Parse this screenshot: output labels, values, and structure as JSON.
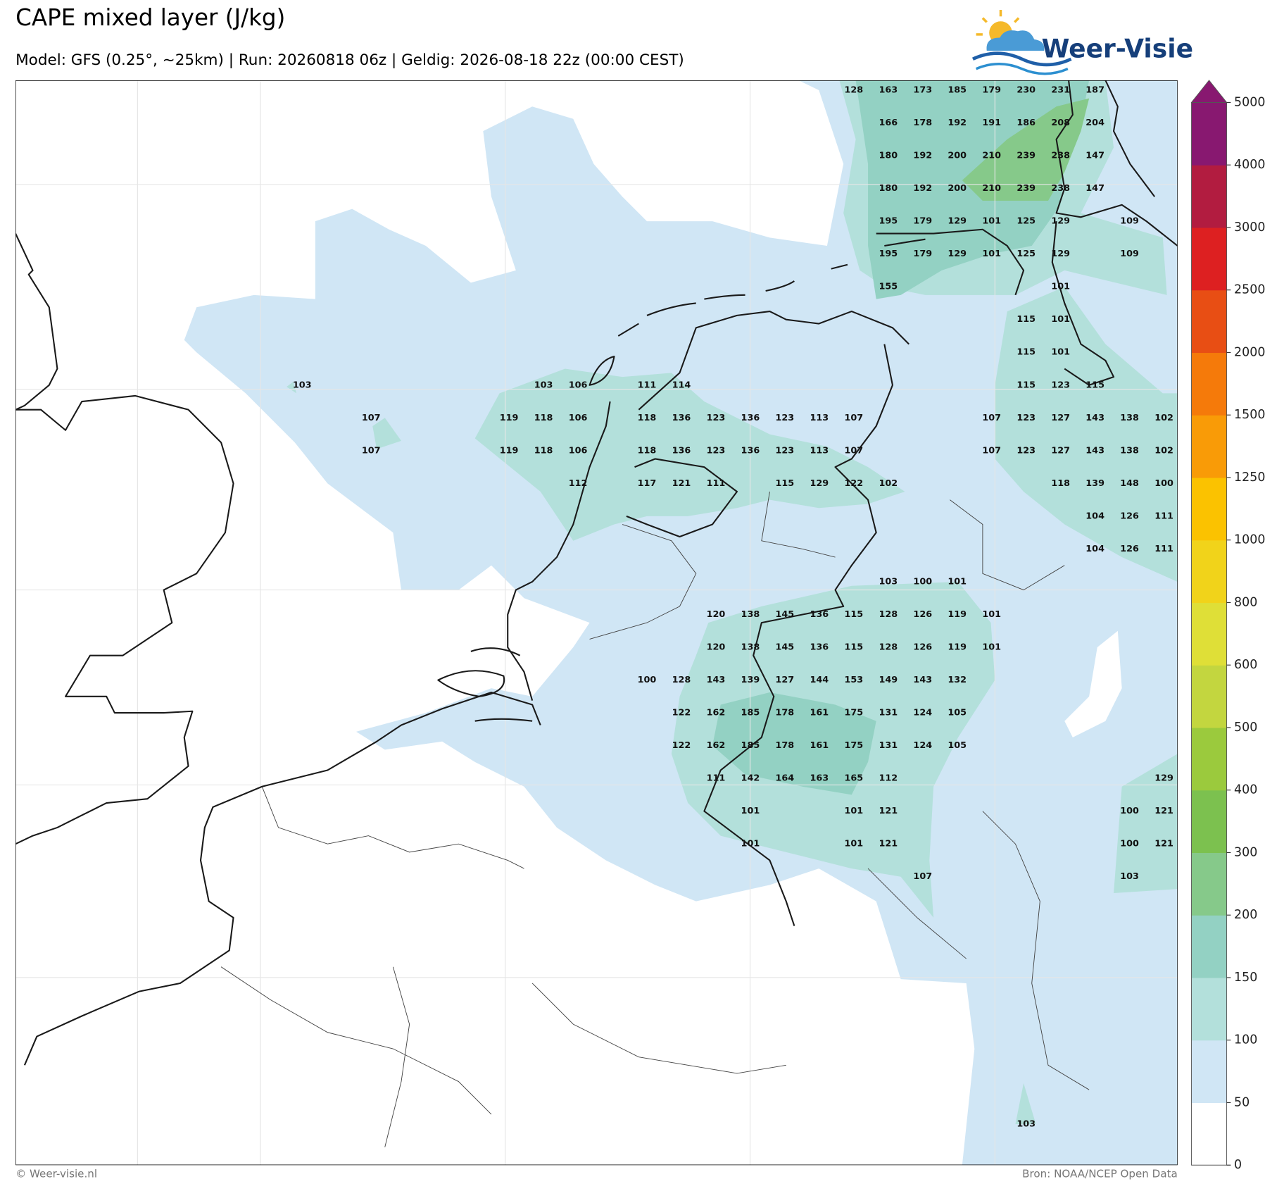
{
  "header": {
    "title": "CAPE mixed layer (J/kg)",
    "subtitle": "Model: GFS (0.25°, ~25km)  |  Run: 20260818 06z  |  Geldig: 2026-08-18 22z (00:00 CEST)",
    "logo": "Weer-Visie"
  },
  "map": {
    "labels": [
      [
        null,
        null,
        null,
        null,
        null,
        null,
        null,
        null,
        null,
        null,
        null,
        null,
        null,
        null,
        null,
        null,
        128,
        163,
        173,
        185,
        179,
        230,
        231,
        187,
        null,
        null
      ],
      [
        null,
        null,
        null,
        null,
        null,
        null,
        null,
        null,
        null,
        null,
        null,
        null,
        null,
        null,
        null,
        null,
        null,
        166,
        178,
        192,
        191,
        186,
        208,
        204,
        null,
        null
      ],
      [
        null,
        null,
        null,
        null,
        null,
        null,
        null,
        null,
        null,
        null,
        null,
        null,
        null,
        null,
        null,
        null,
        null,
        180,
        192,
        200,
        210,
        239,
        238,
        147,
        null,
        null
      ],
      [
        null,
        null,
        null,
        null,
        null,
        null,
        null,
        null,
        null,
        null,
        null,
        null,
        null,
        null,
        null,
        null,
        null,
        180,
        192,
        200,
        210,
        239,
        238,
        147,
        null,
        null
      ],
      [
        null,
        null,
        null,
        null,
        null,
        null,
        null,
        null,
        null,
        null,
        null,
        null,
        null,
        null,
        null,
        null,
        null,
        195,
        179,
        129,
        101,
        125,
        129,
        null,
        109,
        null
      ],
      [
        null,
        null,
        null,
        null,
        null,
        null,
        null,
        null,
        null,
        null,
        null,
        null,
        null,
        null,
        null,
        null,
        null,
        195,
        179,
        129,
        101,
        125,
        129,
        null,
        109,
        null
      ],
      [
        null,
        null,
        null,
        null,
        null,
        null,
        null,
        null,
        null,
        null,
        null,
        null,
        null,
        null,
        null,
        null,
        null,
        155,
        null,
        null,
        null,
        null,
        101,
        null,
        null,
        null
      ],
      [
        null,
        null,
        null,
        null,
        null,
        null,
        null,
        null,
        null,
        null,
        null,
        null,
        null,
        null,
        null,
        null,
        null,
        null,
        null,
        null,
        null,
        115,
        101,
        null,
        null,
        null
      ],
      [
        null,
        null,
        null,
        null,
        null,
        null,
        null,
        null,
        null,
        null,
        null,
        null,
        null,
        null,
        null,
        null,
        null,
        null,
        null,
        null,
        null,
        115,
        101,
        null,
        null,
        null
      ],
      [
        103,
        null,
        null,
        null,
        null,
        null,
        null,
        103,
        106,
        null,
        111,
        114,
        null,
        null,
        null,
        null,
        null,
        null,
        null,
        null,
        null,
        115,
        123,
        115,
        null,
        null
      ],
      [
        null,
        null,
        107,
        null,
        null,
        null,
        119,
        118,
        106,
        null,
        118,
        136,
        123,
        136,
        123,
        113,
        107,
        null,
        null,
        null,
        107,
        123,
        127,
        143,
        138,
        102
      ],
      [
        null,
        null,
        107,
        null,
        null,
        null,
        119,
        118,
        106,
        null,
        118,
        136,
        123,
        136,
        123,
        113,
        107,
        null,
        null,
        null,
        107,
        123,
        127,
        143,
        138,
        102
      ],
      [
        null,
        null,
        null,
        null,
        null,
        null,
        null,
        null,
        112,
        null,
        117,
        121,
        111,
        null,
        115,
        129,
        122,
        102,
        null,
        null,
        null,
        null,
        118,
        139,
        148,
        100
      ],
      [
        null,
        null,
        null,
        null,
        null,
        null,
        null,
        null,
        null,
        null,
        null,
        null,
        null,
        null,
        null,
        null,
        null,
        null,
        null,
        null,
        null,
        null,
        null,
        104,
        126,
        111
      ],
      [
        null,
        null,
        null,
        null,
        null,
        null,
        null,
        null,
        null,
        null,
        null,
        null,
        null,
        null,
        null,
        null,
        null,
        null,
        null,
        null,
        null,
        null,
        null,
        104,
        126,
        111
      ],
      [
        null,
        null,
        null,
        null,
        null,
        null,
        null,
        null,
        null,
        null,
        null,
        null,
        null,
        null,
        null,
        null,
        null,
        103,
        100,
        101,
        null,
        null,
        null,
        null,
        null,
        null
      ],
      [
        null,
        null,
        null,
        null,
        null,
        null,
        null,
        null,
        null,
        null,
        null,
        null,
        120,
        138,
        145,
        136,
        115,
        128,
        126,
        119,
        101,
        null,
        null,
        null,
        null,
        null
      ],
      [
        null,
        null,
        null,
        null,
        null,
        null,
        null,
        null,
        null,
        null,
        null,
        null,
        120,
        138,
        145,
        136,
        115,
        128,
        126,
        119,
        101,
        null,
        null,
        null,
        null,
        null
      ],
      [
        null,
        null,
        null,
        null,
        null,
        null,
        null,
        null,
        null,
        null,
        100,
        128,
        143,
        139,
        127,
        144,
        153,
        149,
        143,
        132,
        null,
        null,
        null,
        null,
        null,
        null
      ],
      [
        null,
        null,
        null,
        null,
        null,
        null,
        null,
        null,
        null,
        null,
        null,
        122,
        162,
        185,
        178,
        161,
        175,
        131,
        124,
        105,
        null,
        null,
        null,
        null,
        null,
        null
      ],
      [
        null,
        null,
        null,
        null,
        null,
        null,
        null,
        null,
        null,
        null,
        null,
        122,
        162,
        185,
        178,
        161,
        175,
        131,
        124,
        105,
        null,
        null,
        null,
        null,
        null,
        null
      ],
      [
        null,
        null,
        null,
        null,
        null,
        null,
        null,
        null,
        null,
        null,
        null,
        null,
        111,
        142,
        164,
        163,
        165,
        112,
        null,
        null,
        null,
        null,
        null,
        null,
        null,
        129
      ],
      [
        null,
        null,
        null,
        null,
        null,
        null,
        null,
        null,
        null,
        null,
        null,
        null,
        null,
        101,
        null,
        null,
        101,
        121,
        null,
        null,
        null,
        null,
        null,
        null,
        100,
        121
      ],
      [
        null,
        null,
        null,
        null,
        null,
        null,
        null,
        null,
        null,
        null,
        null,
        null,
        null,
        101,
        null,
        null,
        101,
        121,
        null,
        null,
        null,
        null,
        null,
        null,
        100,
        121
      ],
      [
        null,
        null,
        null,
        null,
        null,
        null,
        null,
        null,
        null,
        null,
        null,
        null,
        null,
        null,
        null,
        null,
        null,
        null,
        107,
        null,
        null,
        null,
        null,
        null,
        103,
        null
      ],
      [
        null,
        null,
        null,
        null,
        null,
        null,
        null,
        null,
        null,
        null,
        null,
        null,
        null,
        null,
        null,
        null,
        null,
        null,
        null,
        null,
        null,
        null,
        null,
        null,
        null,
        null
      ],
      [
        null,
        null,
        null,
        null,
        null,
        null,
        null,
        null,
        null,
        null,
        null,
        null,
        null,
        null,
        null,
        null,
        null,
        null,
        null,
        null,
        null,
        null,
        null,
        null,
        null,
        null
      ],
      [
        null,
        null,
        null,
        null,
        null,
        null,
        null,
        null,
        null,
        null,
        null,
        null,
        null,
        null,
        null,
        null,
        null,
        null,
        null,
        null,
        null,
        null,
        null,
        null,
        null,
        null
      ],
      [
        null,
        null,
        null,
        null,
        null,
        null,
        null,
        null,
        null,
        null,
        null,
        null,
        null,
        null,
        null,
        null,
        null,
        null,
        null,
        null,
        null,
        null,
        null,
        null,
        null,
        null
      ],
      [
        null,
        null,
        null,
        null,
        null,
        null,
        null,
        null,
        null,
        null,
        null,
        null,
        null,
        null,
        null,
        null,
        null,
        null,
        null,
        null,
        null,
        null,
        null,
        null,
        null,
        null
      ],
      [
        null,
        null,
        null,
        null,
        null,
        null,
        null,
        null,
        null,
        null,
        null,
        null,
        null,
        null,
        null,
        null,
        null,
        null,
        null,
        null,
        null,
        null,
        null,
        null,
        null,
        null
      ],
      [
        null,
        null,
        null,
        null,
        null,
        null,
        null,
        null,
        null,
        null,
        null,
        null,
        null,
        null,
        null,
        null,
        null,
        null,
        null,
        null,
        null,
        null,
        null,
        null,
        null,
        null
      ],
      [
        null,
        null,
        null,
        null,
        null,
        null,
        null,
        null,
        null,
        null,
        null,
        null,
        null,
        null,
        null,
        null,
        null,
        null,
        null,
        null,
        null,
        103,
        null,
        null,
        null,
        null
      ]
    ]
  },
  "colorbar": {
    "ticks": [
      0,
      50,
      100,
      150,
      200,
      300,
      400,
      500,
      600,
      800,
      1000,
      1250,
      1500,
      2000,
      2500,
      3000,
      4000,
      5000
    ],
    "colors": [
      "#ffffff",
      "#d0e6f5",
      "#b3e0db",
      "#93d1c3",
      "#86c98a",
      "#7cc14f",
      "#9bca3d",
      "#c3d63f",
      "#dfdf37",
      "#f1d31a",
      "#fbc200",
      "#f99b07",
      "#f57a0a",
      "#e84e14",
      "#dd2021",
      "#b21c40",
      "#881870"
    ],
    "extend": "max"
  },
  "footer": {
    "left": "© Weer-visie.nl",
    "right": "Bron: NOAA/NCEP Open Data"
  }
}
